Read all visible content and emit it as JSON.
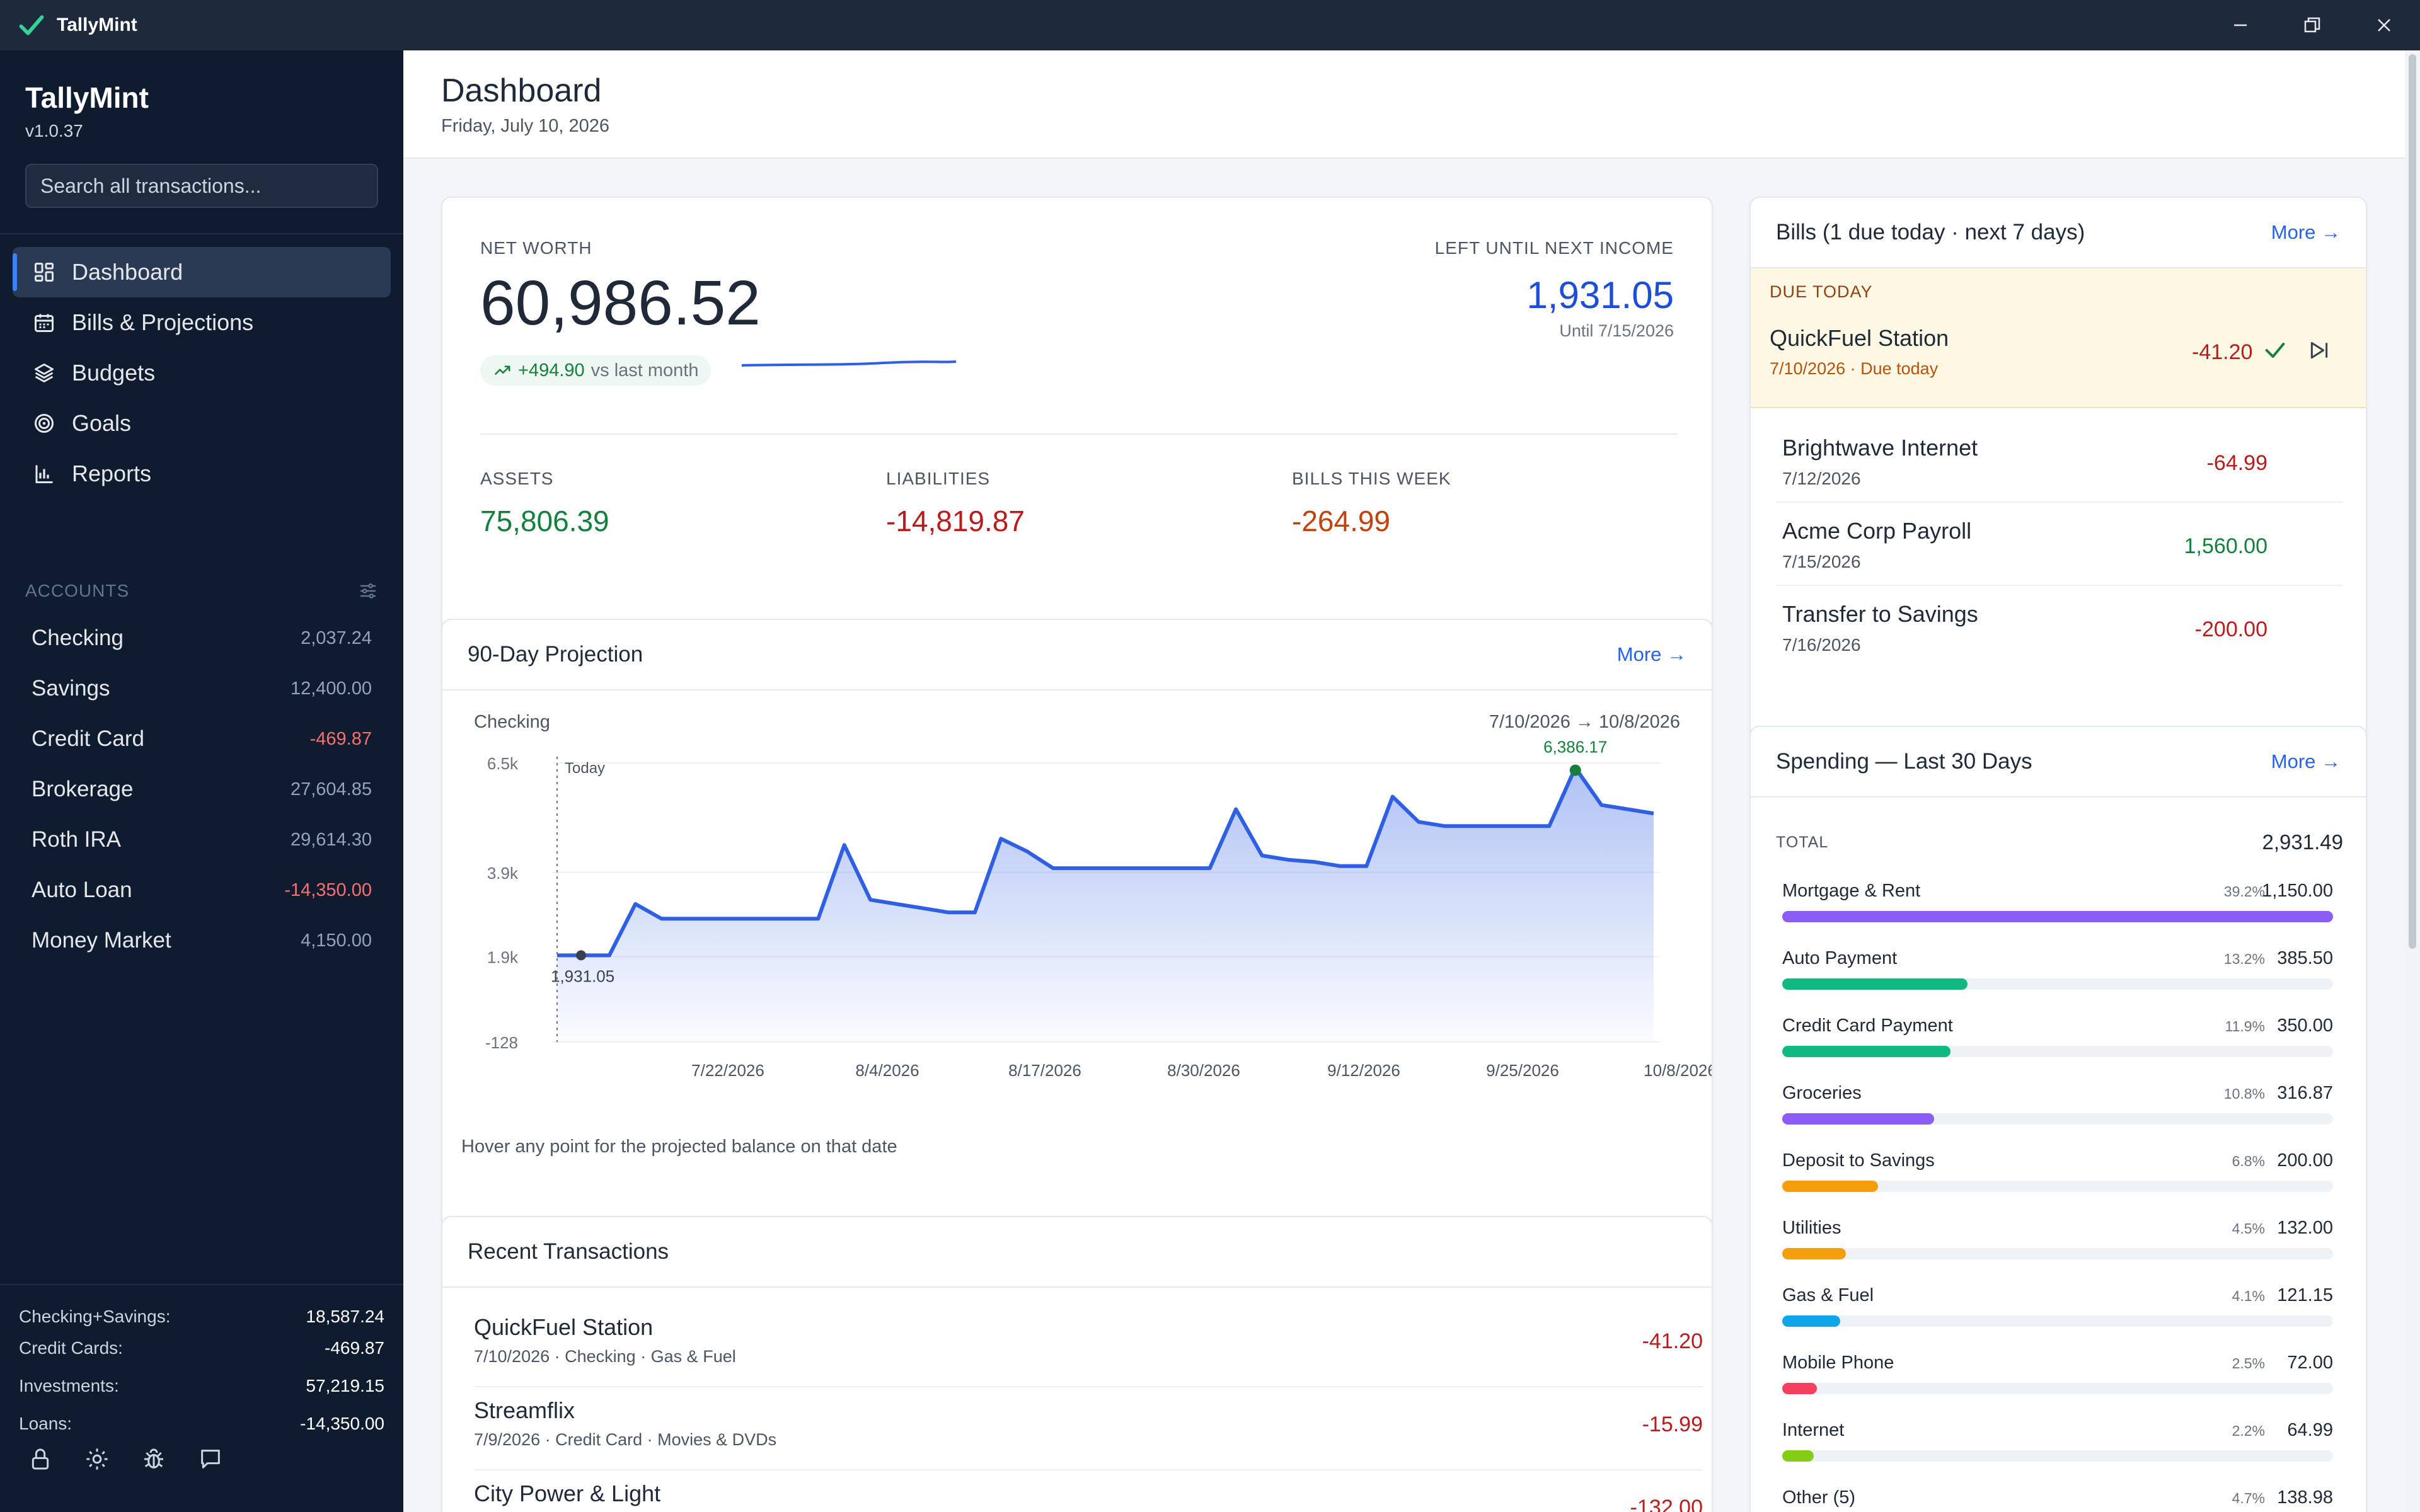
{
  "window": {
    "title": "TallyMint"
  },
  "sidebar": {
    "title": "TallyMint",
    "version": "v1.0.37",
    "search_placeholder": "Search all transactions...",
    "nav": [
      {
        "label": "Dashboard",
        "icon": "dashboard-icon",
        "active": true
      },
      {
        "label": "Bills & Projections",
        "icon": "calendar-icon"
      },
      {
        "label": "Budgets",
        "icon": "layers-icon"
      },
      {
        "label": "Goals",
        "icon": "target-icon"
      },
      {
        "label": "Reports",
        "icon": "bar-chart-icon"
      }
    ],
    "accounts_header": "ACCOUNTS",
    "accounts": [
      {
        "name": "Checking",
        "balance": "2,037.24"
      },
      {
        "name": "Savings",
        "balance": "12,400.00"
      },
      {
        "name": "Credit Card",
        "balance": "-469.87"
      },
      {
        "name": "Brokerage",
        "balance": "27,604.85"
      },
      {
        "name": "Roth IRA",
        "balance": "29,614.30"
      },
      {
        "name": "Auto Loan",
        "balance": "-14,350.00"
      },
      {
        "name": "Money Market",
        "balance": "4,150.00"
      }
    ],
    "summary": [
      {
        "label": "Checking+Savings:",
        "value": "18,587.24"
      },
      {
        "label": "Credit Cards:",
        "value": "-469.87"
      },
      {
        "label": "Investments:",
        "value": "57,219.15"
      },
      {
        "label": "Loans:",
        "value": "-14,350.00"
      }
    ]
  },
  "header": {
    "title": "Dashboard",
    "date": "Friday, July 10, 2026"
  },
  "net_worth": {
    "label": "NET WORTH",
    "value": "60,986.52",
    "change": "+494.90",
    "change_suffix": "vs last month",
    "left_label": "LEFT UNTIL NEXT INCOME",
    "left_value": "1,931.05",
    "left_until": "Until 7/15/2026",
    "assets_label": "ASSETS",
    "assets": "75,806.39",
    "liabilities_label": "LIABILITIES",
    "liabilities": "-14,819.87",
    "bills_label": "BILLS THIS WEEK",
    "bills": "-264.99"
  },
  "projection": {
    "title": "90-Day Projection",
    "more": "More →",
    "account": "Checking",
    "range": "7/10/2026 → 10/8/2026",
    "footer": "Hover any point for the projected balance on that date"
  },
  "chart_data": {
    "type": "area",
    "series": [
      {
        "values": [
          1931.05,
          1931.05,
          1931.05,
          3150,
          2800,
          2800,
          2800,
          2800,
          2800,
          2800,
          2800,
          4550,
          3250,
          3150,
          3050,
          2950,
          2950,
          4700,
          4400,
          4000,
          4000,
          4000,
          4000,
          4000,
          4000,
          4000,
          5400,
          4300,
          4200,
          4150,
          4050,
          4050,
          5700,
          5100,
          5000,
          5000,
          5000,
          5000,
          5000,
          6386.17,
          5500,
          5400,
          5300
        ]
      }
    ],
    "x_labels": [
      "7/22/2026",
      "8/4/2026",
      "8/17/2026",
      "8/30/2026",
      "9/12/2026",
      "9/25/2026",
      "10/8/2026"
    ],
    "y_ticks": [
      "6.5k",
      "3.9k",
      "1.9k",
      "-128"
    ],
    "ylim": [
      -128,
      6500
    ],
    "annotations": [
      {
        "label": "Today",
        "value": "1,931.05"
      },
      {
        "label": "6,386.17"
      }
    ],
    "color": "#2f5fe3"
  },
  "recent": {
    "title": "Recent Transactions",
    "items": [
      {
        "name": "QuickFuel Station",
        "meta": "7/10/2026 · Checking · Gas & Fuel",
        "amount": "-41.20"
      },
      {
        "name": "Streamflix",
        "meta": "7/9/2026 · Credit Card · Movies & DVDs",
        "amount": "-15.99"
      },
      {
        "name": "City Power & Light",
        "meta": "",
        "amount": "-132.00"
      }
    ]
  },
  "bills": {
    "title": "Bills (1 due today · next 7 days)",
    "more": "More →",
    "due_label": "DUE TODAY",
    "due": {
      "name": "QuickFuel Station",
      "meta": "7/10/2026 · Due today",
      "amount": "-41.20"
    },
    "items": [
      {
        "name": "Brightwave Internet",
        "date": "7/12/2026",
        "amount": "-64.99",
        "color": "#b91c1c"
      },
      {
        "name": "Acme Corp Payroll",
        "date": "7/15/2026",
        "amount": "1,560.00",
        "color": "#15803d"
      },
      {
        "name": "Transfer to Savings",
        "date": "7/16/2026",
        "amount": "-200.00",
        "color": "#b91c1c"
      }
    ]
  },
  "spending": {
    "title": "Spending — Last 30 Days",
    "more": "More →",
    "total_label": "TOTAL",
    "total": "2,931.49",
    "categories": [
      {
        "name": "Mortgage & Rent",
        "pct": "39.2%",
        "amount": "1,150.00",
        "fill": 1.0,
        "color": "#8b5cf6"
      },
      {
        "name": "Auto Payment",
        "pct": "13.2%",
        "amount": "385.50",
        "fill": 0.336,
        "color": "#10b981"
      },
      {
        "name": "Credit Card Payment",
        "pct": "11.9%",
        "amount": "350.00",
        "fill": 0.305,
        "color": "#10b981"
      },
      {
        "name": "Groceries",
        "pct": "10.8%",
        "amount": "316.87",
        "fill": 0.276,
        "color": "#8b5cf6"
      },
      {
        "name": "Deposit to Savings",
        "pct": "6.8%",
        "amount": "200.00",
        "fill": 0.174,
        "color": "#f59e0b"
      },
      {
        "name": "Utilities",
        "pct": "4.5%",
        "amount": "132.00",
        "fill": 0.115,
        "color": "#f59e0b"
      },
      {
        "name": "Gas & Fuel",
        "pct": "4.1%",
        "amount": "121.15",
        "fill": 0.105,
        "color": "#0ea5e9"
      },
      {
        "name": "Mobile Phone",
        "pct": "2.5%",
        "amount": "72.00",
        "fill": 0.063,
        "color": "#f43f5e"
      },
      {
        "name": "Internet",
        "pct": "2.2%",
        "amount": "64.99",
        "fill": 0.057,
        "color": "#84cc16"
      },
      {
        "name": "Other (5)",
        "pct": "4.7%",
        "amount": "138.98",
        "fill": 0.12,
        "color": "#94a3b8"
      }
    ]
  }
}
